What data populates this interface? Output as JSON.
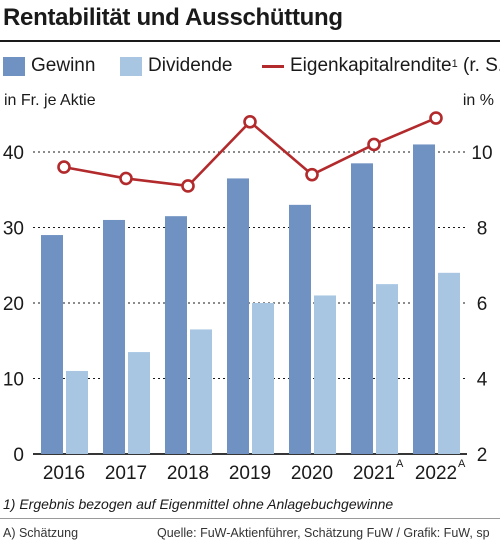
{
  "header": {
    "title": "Rentabilität und Ausschüttung"
  },
  "legend": {
    "gewinn": "Gewinn",
    "dividende": "Dividende",
    "ek_rendite": "Eigenkapitalrendite",
    "ek_rendite_sup": "1",
    "ek_rendite_suffix": " (r. S.)"
  },
  "units": {
    "left": "in Fr. je Aktie",
    "right": "in %"
  },
  "colors": {
    "gewinn": "#6f92c3",
    "dividende": "#a8c6e2",
    "ek_rendite": "#b22a2c",
    "grid": "#1a1a1a"
  },
  "chart_data": {
    "type": "bar",
    "categories": [
      "2016",
      "2017",
      "2018",
      "2019",
      "2020",
      "2021",
      "2022"
    ],
    "category_suffix": [
      "",
      "",
      "",
      "",
      "",
      "A",
      "A"
    ],
    "series": [
      {
        "name": "Gewinn",
        "type": "bar",
        "axis": "left",
        "values": [
          29,
          31,
          31.5,
          36.5,
          33,
          38.5,
          41
        ]
      },
      {
        "name": "Dividende",
        "type": "bar",
        "axis": "left",
        "values": [
          11,
          13.5,
          16.5,
          20,
          21,
          22.5,
          24
        ]
      },
      {
        "name": "Eigenkapitalrendite",
        "type": "line",
        "axis": "right",
        "values": [
          9.6,
          9.3,
          9.1,
          10.8,
          9.4,
          10.2,
          10.9
        ]
      }
    ],
    "y_left": {
      "ylim": [
        0,
        45
      ],
      "ticks": [
        0,
        10,
        20,
        30,
        40
      ]
    },
    "y_right": {
      "ylim": [
        2,
        11
      ],
      "ticks": [
        2,
        4,
        6,
        8,
        10
      ]
    },
    "grid": true,
    "legend_position": "top"
  },
  "footnote": "1) Ergebnis bezogen auf Eigenmittel ohne Anlagebuchgewinne",
  "source_left": "A) Schätzung",
  "source_right": "Quelle: FuW-Aktienführer, Schätzung FuW / Grafik: FuW, sp"
}
